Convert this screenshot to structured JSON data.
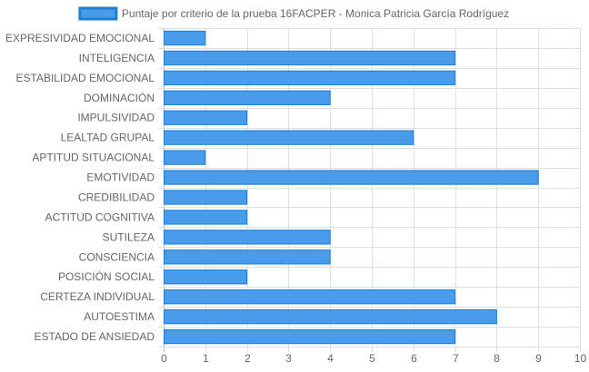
{
  "chart_data": {
    "type": "bar",
    "orientation": "horizontal",
    "categories": [
      "EXPRESIVIDAD EMOCIONAL",
      "INTELIGENCIA",
      "ESTABILIDAD EMOCIONAL",
      "DOMINACIÓN",
      "IMPULSIVIDAD",
      "LEALTAD GRUPAL",
      "APTITUD SITUACIONAL",
      "EMOTIVIDAD",
      "CREDIBILIDAD",
      "ACTITUD COGNITIVA",
      "SUTILEZA",
      "CONSCIENCIA",
      "POSICIÓN SOCIAL",
      "CERTEZA INDIVIDUAL",
      "AUTOESTIMA",
      "ESTADO DE ANSIEDAD"
    ],
    "series": [
      {
        "name": "Puntaje por criterio de la prueba 16FACPER - Monica Patricia García Rodríguez",
        "values": [
          1,
          7,
          7,
          4,
          2,
          6,
          1,
          9,
          2,
          2,
          4,
          4,
          2,
          7,
          8,
          7
        ],
        "color": "#4a9bea",
        "border_color": "#1e7fd6"
      }
    ],
    "xlim": [
      0,
      10
    ],
    "x_ticks": [
      "0",
      "1",
      "2",
      "3",
      "4",
      "5",
      "6",
      "7",
      "8",
      "9",
      "10"
    ],
    "grid": true,
    "legend_position": "top-center"
  }
}
